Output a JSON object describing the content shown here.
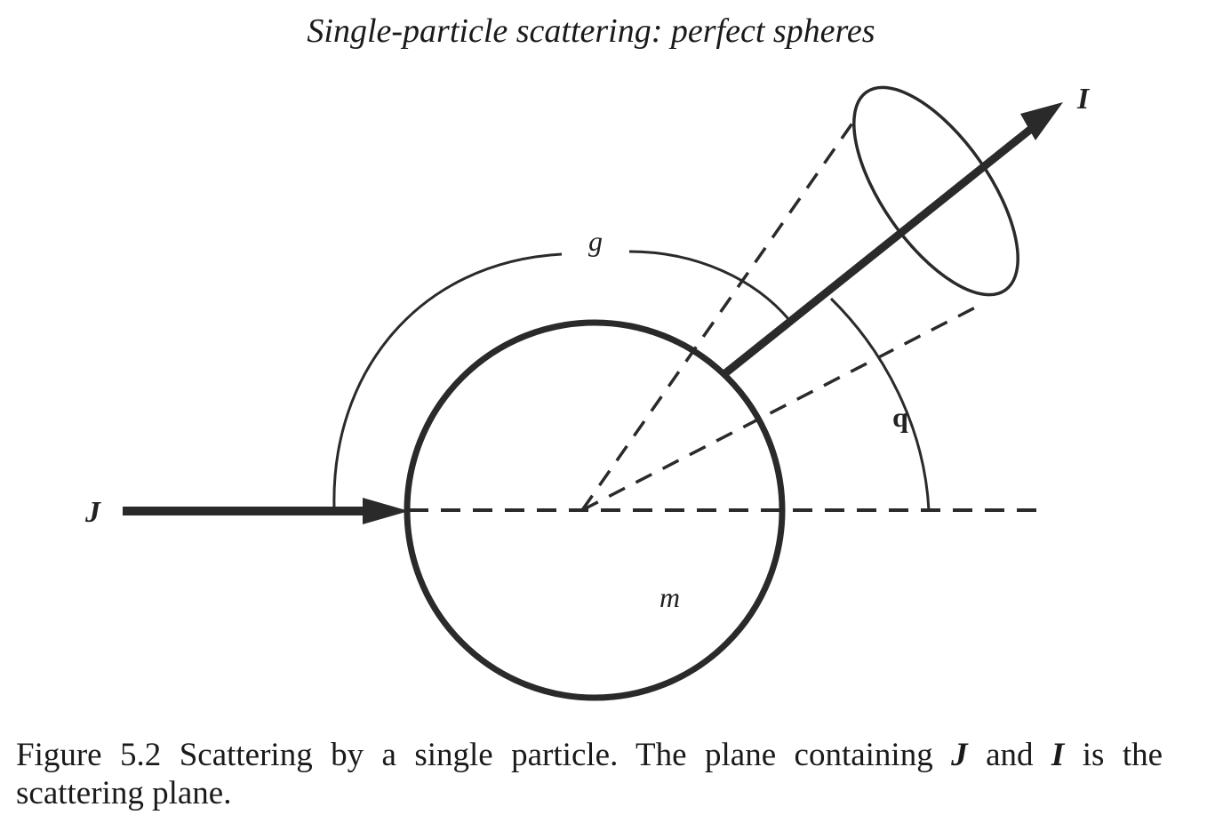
{
  "header": {
    "title": "Single-particle scattering: perfect spheres"
  },
  "figure": {
    "labels": {
      "incident": "J",
      "scattered": "I",
      "azimuth_angle": "g",
      "scattering_angle": "q",
      "particle": "m"
    },
    "caption": {
      "number": "Figure 5.2",
      "part1": "Scattering by a single particle. The plane containing",
      "sym_j": "J",
      "and": "and",
      "sym_i": "I",
      "part2": "is the",
      "line2": "scattering plane."
    }
  }
}
